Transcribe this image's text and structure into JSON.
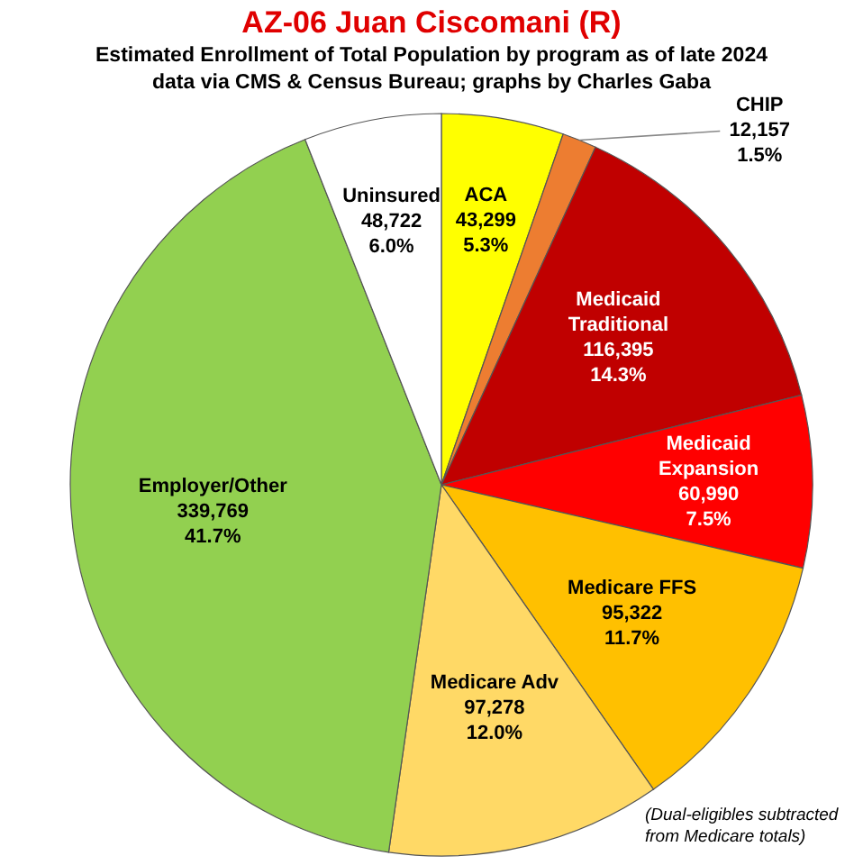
{
  "chart_data": {
    "type": "pie",
    "title": "AZ-06 Juan Ciscomani (R)",
    "subtitle": "Estimated Enrollment of Total Population by program as of late 2024\ndata via CMS & Census Bureau; graphs by Charles Gaba",
    "categories": [
      "ACA",
      "CHIP",
      "Medicaid Traditional",
      "Medicaid Expansion",
      "Medicare FFS",
      "Medicare Adv",
      "Employer/Other",
      "Uninsured"
    ],
    "values": [
      43299,
      12157,
      116395,
      60990,
      95322,
      97278,
      339769,
      48722
    ],
    "value_labels": [
      "43,299\n5.3%",
      "12,157\n1.5%",
      "116,395\n14.3%",
      "60,990\n7.5%",
      "95,322\n11.7%",
      "97,278\n12.0%",
      "339,769\n41.7%",
      "48,722\n6.0%"
    ],
    "colors": [
      "#ffff00",
      "#ed7d31",
      "#c00000",
      "#ff0000",
      "#ffc000",
      "#ffd966",
      "#92d050",
      "#ffffff"
    ],
    "annotations": [
      "(Dual-eligibles subtracted from Medicare totals)"
    ]
  }
}
